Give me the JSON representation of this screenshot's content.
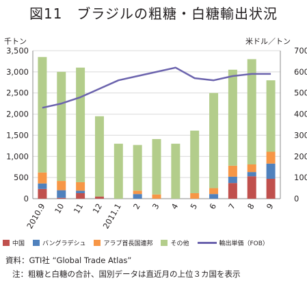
{
  "header": {
    "title": "図11　ブラジルの粗糖・白糖輸出状況"
  },
  "chart_data": {
    "type": "bar",
    "stacked": true,
    "categories": [
      "2010.9",
      "10",
      "11",
      "12",
      "2011.1",
      "2",
      "3",
      "4",
      "5",
      "6",
      "7",
      "8",
      "9"
    ],
    "series": [
      {
        "name": "中国",
        "color": "#c0504d",
        "values": [
          230,
          20,
          130,
          50,
          0,
          0,
          0,
          0,
          0,
          0,
          370,
          530,
          470
        ]
      },
      {
        "name": "バングラデシュ",
        "color": "#4f81bd",
        "values": [
          130,
          180,
          60,
          0,
          0,
          110,
          0,
          0,
          0,
          110,
          150,
          100,
          360
        ]
      },
      {
        "name": "アラブ首長国連邦",
        "color": "#f79646",
        "values": [
          260,
          220,
          200,
          0,
          0,
          80,
          100,
          0,
          130,
          140,
          260,
          180,
          280
        ]
      },
      {
        "name": "その他",
        "color": "#b3cd8b",
        "values": [
          2730,
          2580,
          2710,
          1900,
          1300,
          1080,
          1310,
          1300,
          1480,
          2250,
          2270,
          2490,
          1690
        ]
      }
    ],
    "line_series": {
      "name": "輸出単価（FOB）",
      "color": "#6b63ad",
      "values": [
        430,
        450,
        480,
        520,
        560,
        580,
        600,
        620,
        570,
        560,
        580,
        590,
        590
      ]
    },
    "y_left": {
      "unit": "千トン",
      "min": 0,
      "max": 3500,
      "ticks": [
        "0",
        "500",
        "1,000",
        "1,500",
        "2,000",
        "2,500",
        "3,000",
        "3,500"
      ]
    },
    "y_right": {
      "unit": "米ドル／トン",
      "min": 0,
      "max": 700,
      "ticks": [
        "0",
        "100",
        "200",
        "300",
        "400",
        "500",
        "600",
        "700"
      ]
    },
    "grid": true,
    "legend_position": "bottom"
  },
  "notes": {
    "source": "資料：GTI社 “Global Trade Atlas”",
    "note": "注：粗糖と白糖の合計、国別データは直近月の上位３カ国を表示"
  }
}
